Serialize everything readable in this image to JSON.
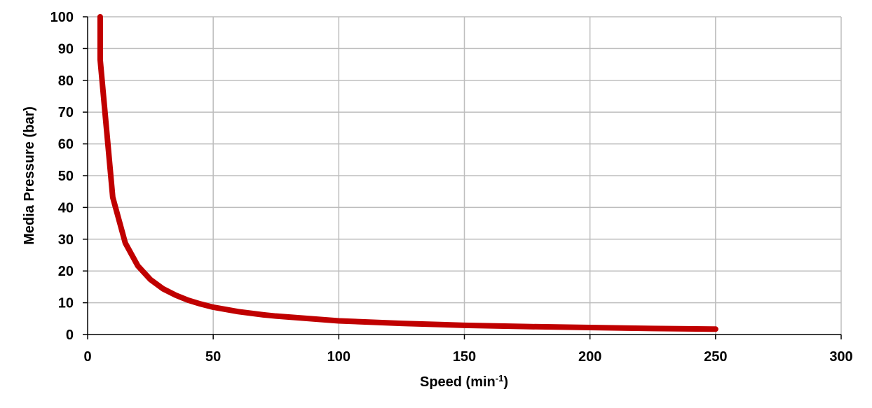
{
  "chart_data": {
    "type": "line",
    "title": "",
    "xlabel": "Speed (min",
    "xlabel_superscript": "-1",
    "xlabel_suffix": ")",
    "ylabel": "Media Pressure (bar)",
    "xlim": [
      0,
      300
    ],
    "ylim": [
      0,
      100
    ],
    "x_ticks": [
      0,
      50,
      100,
      150,
      200,
      250,
      300
    ],
    "y_ticks": [
      0,
      10,
      20,
      30,
      40,
      50,
      60,
      70,
      80,
      90,
      100
    ],
    "grid": true,
    "legend": "none",
    "series": [
      {
        "color": "#c00000",
        "x": [
          5,
          5,
          10,
          15,
          20,
          25,
          30,
          35,
          40,
          45,
          50,
          60,
          70,
          75,
          100,
          125,
          150,
          175,
          200,
          225,
          250
        ],
        "y": [
          100,
          86.5,
          43.2,
          28.8,
          21.6,
          17.3,
          14.4,
          12.4,
          10.8,
          9.6,
          8.6,
          7.2,
          6.2,
          5.8,
          4.3,
          3.5,
          2.9,
          2.5,
          2.2,
          1.9,
          1.7
        ]
      }
    ]
  }
}
